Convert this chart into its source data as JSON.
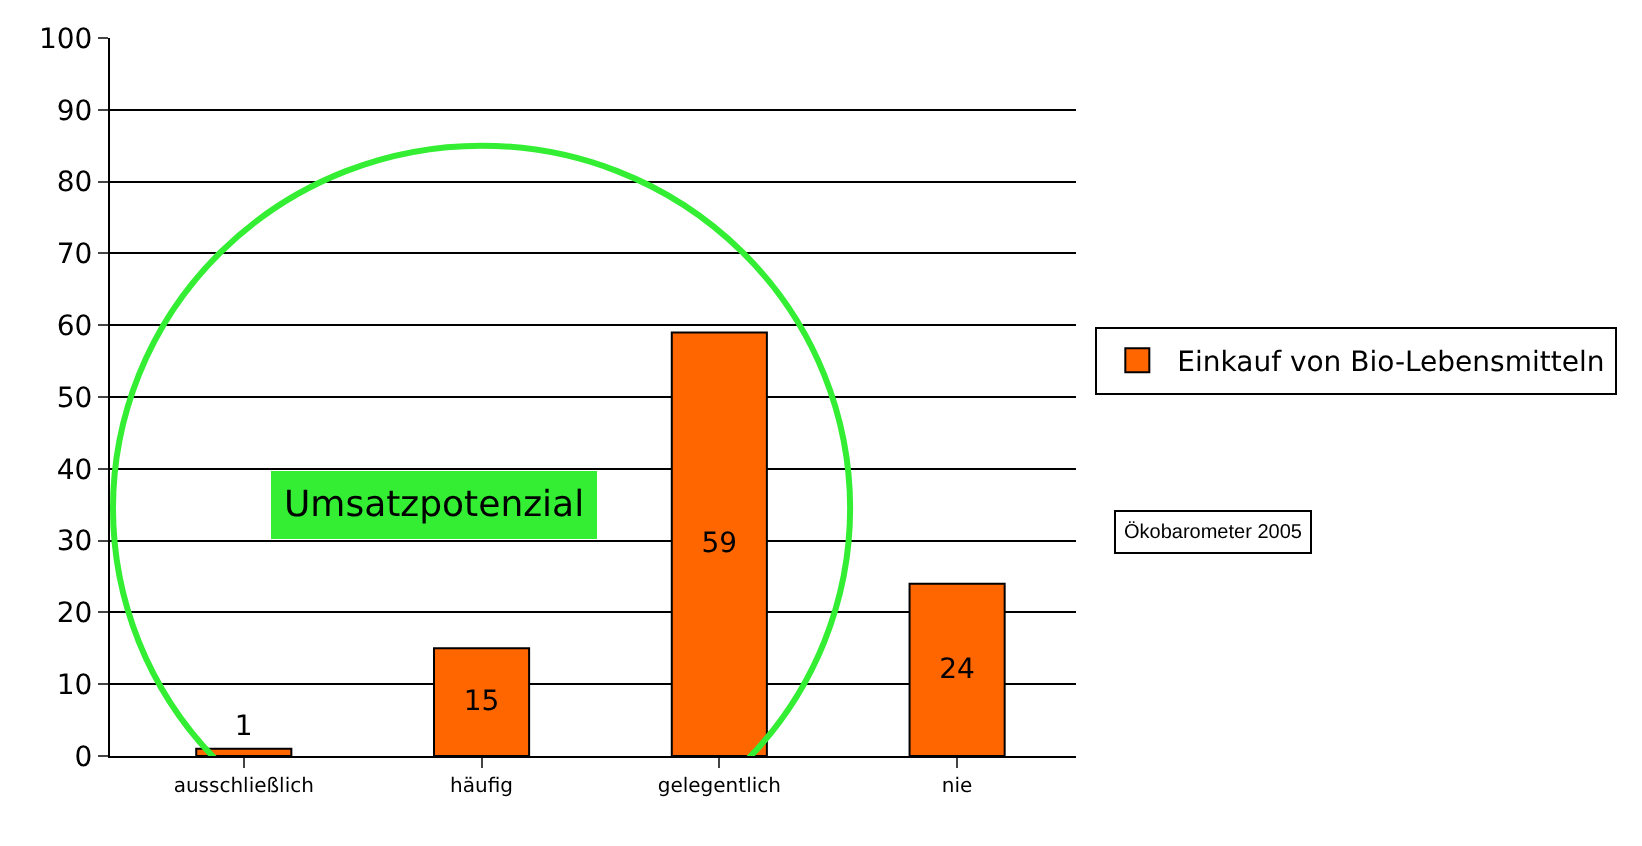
{
  "chart_data": {
    "type": "bar",
    "categories": [
      "ausschließlich",
      "häufig",
      "gelegentlich",
      "nie"
    ],
    "series": [
      {
        "name": "Einkauf von Bio-Lebensmitteln",
        "color": "#ff6600",
        "values": [
          1,
          15,
          59,
          24
        ]
      }
    ],
    "ylim": [
      0,
      100
    ],
    "yticks": [
      0,
      10,
      20,
      30,
      40,
      50,
      60,
      70,
      80,
      90,
      100
    ],
    "grid": "y",
    "legend": "right",
    "data_labels": true,
    "annotations": [
      "Umsatzpotenzial",
      "Ökobarometer 2005"
    ]
  }
}
